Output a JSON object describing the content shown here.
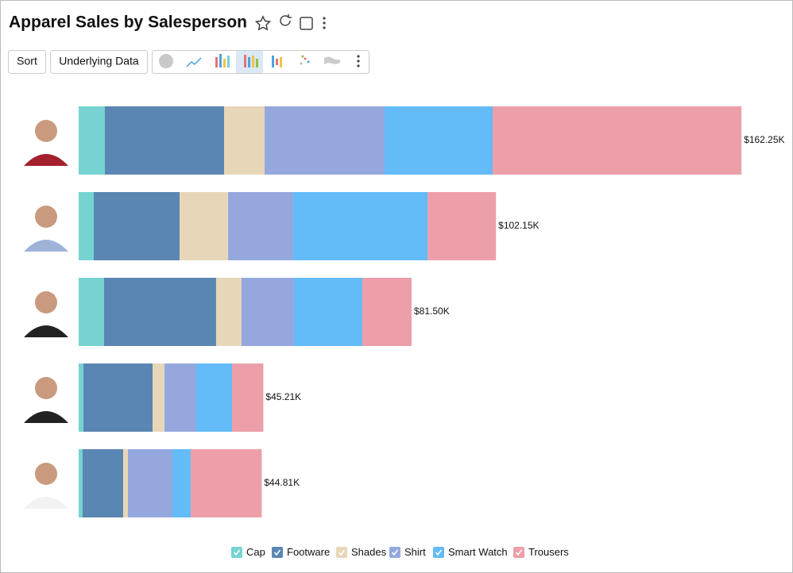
{
  "toolbar": {
    "buttons": [
      "Sort",
      "Underlying Data"
    ]
  },
  "chart_data": {
    "type": "stacked-bar",
    "orientation": "horizontal",
    "title": "Apparel Sales by Salesperson",
    "categories": [
      null,
      null,
      null,
      null,
      null
    ],
    "series": [
      {
        "name": "Cap",
        "color": "#76d3d1",
        "values": [
          6420,
          3700,
          6220,
          1170,
          970
        ]
      },
      {
        "name": "Footware",
        "color": "#5a86b3",
        "values": [
          29180,
          21010,
          27420,
          16920,
          9920
        ]
      },
      {
        "name": "Shades",
        "color": "#e8d6b9",
        "values": [
          9920,
          11870,
          6220,
          2920,
          1170
        ]
      },
      {
        "name": "Shirt",
        "color": "#94a8de",
        "values": [
          29370,
          15950,
          12840,
          7780,
          10890
        ]
      },
      {
        "name": "Smart Watch",
        "color": "#63bbf7",
        "values": [
          26450,
          32870,
          16730,
          8750,
          4470
        ]
      },
      {
        "name": "Trousers",
        "color": "#ed9fa9",
        "values": [
          60910,
          16750,
          12070,
          7670,
          17390
        ]
      }
    ],
    "totals": [
      162250,
      102150,
      81500,
      45210,
      44810
    ],
    "total_labels": [
      "$162.25K",
      "$102.15K",
      "$81.50K",
      "$45.21K",
      "$44.81K"
    ],
    "xlim": [
      0,
      170000
    ],
    "legend": "bottom"
  }
}
